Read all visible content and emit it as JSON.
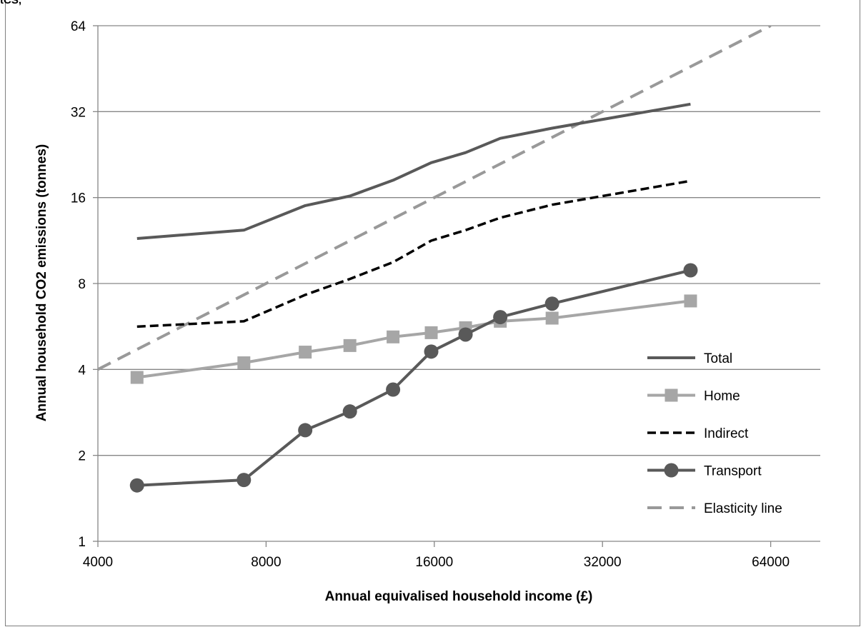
{
  "corner_text": "tCS,",
  "chart_data": {
    "type": "line",
    "title": "",
    "xlabel": "Annual equivalised household income (£)",
    "ylabel": "Annual household CO2 emissions (tonnes)",
    "x_scale": "log2",
    "y_scale": "log2",
    "xlim": [
      4000,
      90000
    ],
    "ylim": [
      1,
      64
    ],
    "x_ticks": [
      4000,
      8000,
      16000,
      32000,
      64000
    ],
    "x_tick_labels": [
      "4000",
      "8000",
      "16000",
      "32000",
      "64000"
    ],
    "y_ticks": [
      1,
      2,
      4,
      8,
      16,
      32,
      64
    ],
    "y_tick_labels": [
      "1",
      "2",
      "4",
      "8",
      "16",
      "32",
      "64"
    ],
    "grid": "horizontal major gridlines",
    "legend_position": "bottom-right inside plot",
    "series": [
      {
        "name": "Total",
        "style": "solid",
        "marker": "none",
        "color": "#595959",
        "x": [
          4700,
          7300,
          9400,
          11300,
          13500,
          15800,
          18200,
          21000,
          26000,
          46000
        ],
        "y": [
          11.5,
          12.3,
          15.0,
          16.2,
          18.4,
          21.2,
          23.0,
          25.8,
          28.0,
          34.0
        ]
      },
      {
        "name": "Home",
        "style": "solid",
        "marker": "square",
        "color": "#a6a6a6",
        "x": [
          4700,
          7300,
          9400,
          11300,
          13500,
          15800,
          18200,
          21000,
          26000,
          46000
        ],
        "y": [
          3.75,
          4.22,
          4.6,
          4.85,
          5.2,
          5.38,
          5.6,
          5.9,
          6.05,
          6.95
        ]
      },
      {
        "name": "Indirect",
        "style": "dashed",
        "marker": "none",
        "color": "#000000",
        "x": [
          4700,
          7300,
          9400,
          11300,
          13500,
          15800,
          18200,
          21000,
          26000,
          46000
        ],
        "y": [
          5.65,
          5.9,
          7.3,
          8.3,
          9.5,
          11.3,
          12.3,
          13.6,
          15.1,
          18.3
        ]
      },
      {
        "name": "Transport",
        "style": "solid",
        "marker": "circle",
        "color": "#595959",
        "x": [
          4700,
          7300,
          9400,
          11300,
          13500,
          15800,
          18200,
          21000,
          26000,
          46000
        ],
        "y": [
          1.57,
          1.64,
          2.45,
          2.85,
          3.4,
          4.62,
          5.3,
          6.1,
          6.8,
          8.9
        ]
      },
      {
        "name": "Elasticity line",
        "style": "dashed",
        "marker": "none",
        "color": "#999999",
        "x": [
          4000,
          16000,
          64000
        ],
        "y": [
          4,
          16,
          64
        ]
      }
    ]
  }
}
